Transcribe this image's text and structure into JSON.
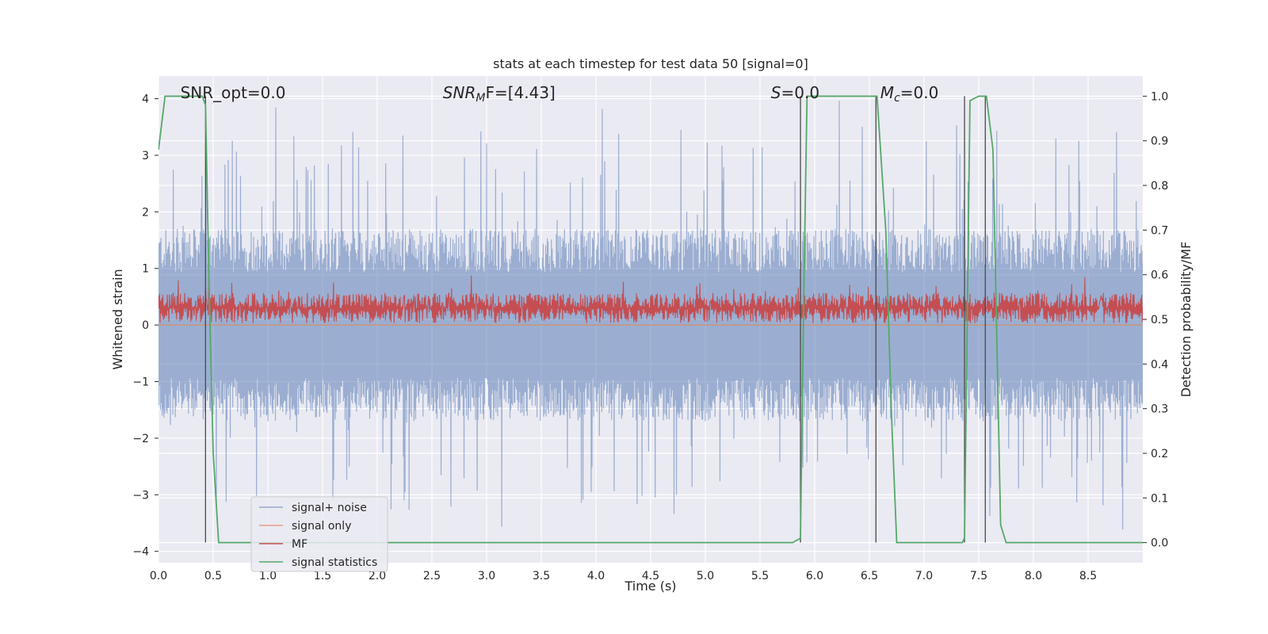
{
  "chart_data": {
    "type": "line",
    "title": "stats at each timestep for test data 50 [signal=0]",
    "xlabel": "Time (s)",
    "ylabel": "Whitened strain",
    "y2label": "Detection probability/MF",
    "xlim": [
      0.0,
      9.0
    ],
    "ylim": [
      -4.2,
      4.4
    ],
    "y2lim": [
      -0.045,
      1.045
    ],
    "xticks": [
      "0.0",
      "0.5",
      "1.0",
      "1.5",
      "2.0",
      "2.5",
      "3.0",
      "3.5",
      "4.0",
      "4.5",
      "5.0",
      "5.5",
      "6.0",
      "6.5",
      "7.0",
      "7.5",
      "8.0",
      "8.5"
    ],
    "yticks": [
      "4",
      "3",
      "2",
      "1",
      "0",
      "−1",
      "−2",
      "−3",
      "−4"
    ],
    "y2ticks": [
      "1.0",
      "0.9",
      "0.8",
      "0.7",
      "0.6",
      "0.5",
      "0.4",
      "0.3",
      "0.2",
      "0.1",
      "0.0"
    ],
    "grid": true,
    "legend_position": "lower-left",
    "annotations": [
      {
        "text": "SNR_opt=0.0",
        "x": 0.2
      },
      {
        "text": "SNR",
        "sub": "M",
        "rest": "F=[4.43]",
        "x": 2.6,
        "italic": true
      },
      {
        "text": "S",
        "rest": "=0.0",
        "x": 5.6,
        "italic": true
      },
      {
        "text": "M",
        "sub": "c",
        "rest": "=0.0",
        "x": 6.6,
        "italic": true
      }
    ],
    "series": [
      {
        "name": "signal+ noise",
        "color": "#4c72b0",
        "envelope": {
          "upper_typical": 1.7,
          "lower_typical": -1.7,
          "max": 4.0,
          "min": -3.7
        }
      },
      {
        "name": "signal only",
        "color": "#dd8452",
        "values_constant": 0.0
      },
      {
        "name": "MF",
        "color": "#c44e52",
        "envelope": {
          "center": 0.3,
          "amplitude": 0.3,
          "max": 1.0,
          "min": 0.0
        }
      },
      {
        "name": "signal statistics",
        "color": "#55a868",
        "x": [
          0.0,
          0.06,
          0.4,
          0.43,
          0.46,
          0.5,
          0.55,
          1.0,
          2.0,
          3.0,
          3.85,
          4.0,
          5.0,
          5.8,
          5.87,
          5.9,
          5.93,
          6.0,
          6.5,
          6.57,
          6.65,
          6.7,
          6.75,
          7.0,
          7.35,
          7.37,
          7.42,
          7.5,
          7.57,
          7.63,
          7.7,
          7.75,
          8.0,
          8.5,
          9.0
        ],
        "y": [
          0.88,
          1.0,
          1.0,
          0.98,
          0.6,
          0.2,
          0.0,
          0.0,
          0.0,
          0.0,
          0.0,
          0.0,
          0.0,
          0.0,
          0.01,
          0.55,
          1.0,
          1.0,
          1.0,
          1.0,
          0.7,
          0.3,
          0.0,
          0.0,
          0.0,
          0.01,
          0.99,
          1.0,
          1.0,
          0.88,
          0.04,
          0.0,
          0.0,
          0.0,
          0.0
        ]
      }
    ],
    "vlines": [
      0.43,
      5.87,
      6.56,
      7.37,
      7.56
    ],
    "colors": {
      "background": "#eaeaf2",
      "grid": "#ffffff",
      "vline": "#4a4a4a"
    }
  }
}
